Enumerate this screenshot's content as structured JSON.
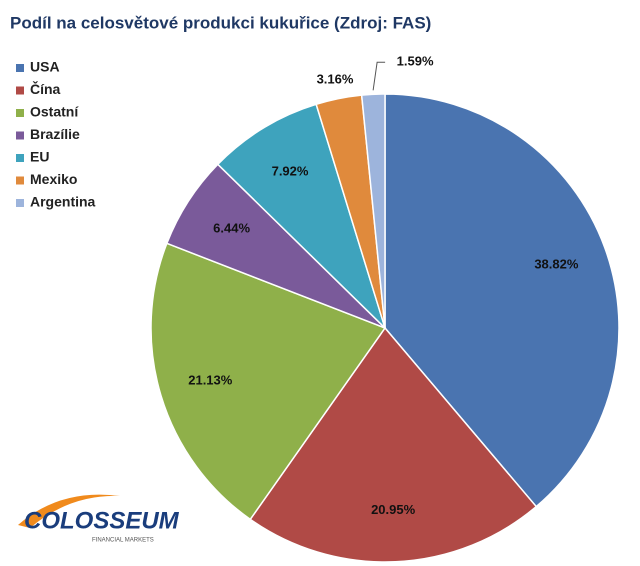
{
  "chart_data": {
    "type": "pie",
    "title": "Podíl na celosvětové produkci kukuřice (Zdroj: FAS)",
    "categories": [
      "USA",
      "Čína",
      "Ostatní",
      "Brazílie",
      "EU",
      "Mexiko",
      "Argentina"
    ],
    "values": [
      38.82,
      20.95,
      21.13,
      6.44,
      7.92,
      3.16,
      1.59
    ],
    "value_labels": [
      "38.82%",
      "20.95%",
      "21.13%",
      "6.44%",
      "7.92%",
      "3.16%",
      "1.59%"
    ],
    "colors": [
      "#4a74b0",
      "#b04a46",
      "#8fb04a",
      "#7a5a9a",
      "#3ea3bd",
      "#e08a3c",
      "#9db4dc"
    ],
    "legend": "left",
    "logo": {
      "name": "COLOSSEUM",
      "tagline": "FINANCIAL MARKETS"
    }
  }
}
